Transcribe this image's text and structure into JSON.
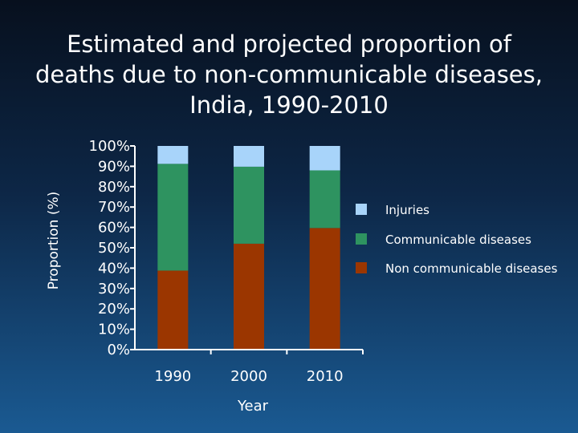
{
  "chart_data": {
    "type": "bar",
    "stacked": true,
    "title": "Estimated and projected proportion of deaths due to non-communicable diseases, India, 1990-2010",
    "xlabel": "Year",
    "ylabel": "Proportion (%)",
    "categories": [
      "1990",
      "2000",
      "2010"
    ],
    "ylim": [
      0,
      100
    ],
    "yticks": [
      "100%",
      "90%",
      "80%",
      "70%",
      "60%",
      "50%",
      "40%",
      "30%",
      "20%",
      "10%",
      "0%"
    ],
    "series": [
      {
        "name": "Non communicable diseases",
        "values": [
          38.8,
          52,
          59.7
        ],
        "color": "#9b3600"
      },
      {
        "name": "Communicable diseases",
        "values": [
          52.4,
          37.8,
          28.3
        ],
        "color": "#2e9360"
      },
      {
        "name": "Injuries",
        "values": [
          8.8,
          10.2,
          12
        ],
        "color": "#a8d4fa"
      }
    ],
    "legend_order": [
      "Injuries",
      "Communicable diseases",
      "Non communicable diseases"
    ],
    "legend_position": "right",
    "grid": false
  }
}
